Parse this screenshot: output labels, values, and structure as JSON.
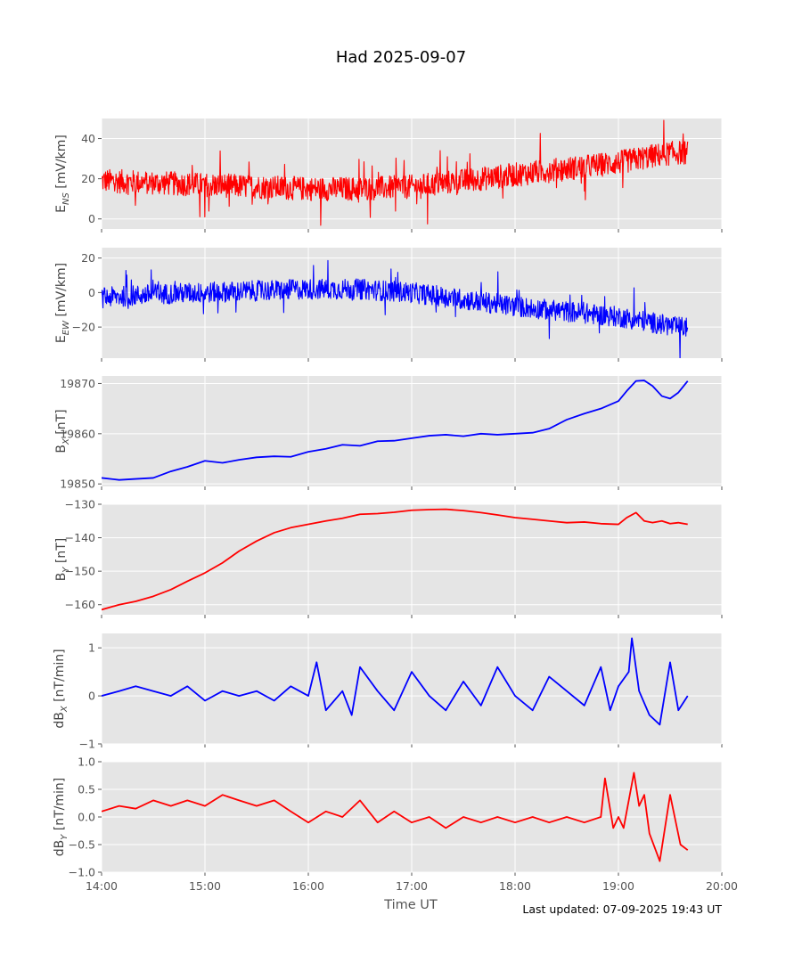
{
  "figure": {
    "title": "Had 2025-09-07",
    "xlabel": "Time UT",
    "footer": "Last updated: 07-09-2025 19:43 UT",
    "x_ticks": [
      "14:00",
      "15:00",
      "16:00",
      "17:00",
      "18:00",
      "19:00",
      "20:00"
    ]
  },
  "chart_data": [
    {
      "type": "line",
      "ylabel": "E",
      "ylabel_sub": "NS",
      "ylabel_unit": " [mV/km]",
      "color": "#ff0000",
      "ylim": [
        -5,
        50
      ],
      "yticks": [
        0,
        20,
        40
      ],
      "xlim_hours": [
        14,
        20
      ],
      "x": [
        14.0,
        14.5,
        15.0,
        15.5,
        16.0,
        16.5,
        17.0,
        17.5,
        18.0,
        18.5,
        19.0,
        19.3,
        19.55,
        19.67
      ],
      "y": [
        19,
        18,
        17,
        16,
        15,
        15,
        16,
        19,
        22,
        25,
        28,
        31,
        33,
        33
      ]
    },
    {
      "type": "line",
      "ylabel": "E",
      "ylabel_sub": "EW",
      "ylabel_unit": " [mV/km]",
      "color": "#0000ff",
      "ylim": [
        -38,
        26
      ],
      "yticks": [
        -20,
        0,
        20
      ],
      "xlim_hours": [
        14,
        20
      ],
      "x": [
        14.0,
        14.5,
        15.0,
        15.5,
        16.0,
        16.5,
        17.0,
        17.5,
        18.0,
        18.5,
        19.0,
        19.3,
        19.55,
        19.67
      ],
      "y": [
        -3,
        -1,
        0,
        1,
        2,
        2,
        0,
        -4,
        -8,
        -11,
        -14,
        -17,
        -20,
        -20
      ]
    },
    {
      "type": "line",
      "ylabel": "B",
      "ylabel_sub": "X",
      "ylabel_unit": " [nT]",
      "color": "#0000ff",
      "ylim": [
        19849.5,
        19871.5
      ],
      "yticks": [
        19850,
        19860,
        19870
      ],
      "xlim_hours": [
        14,
        20
      ],
      "x": [
        14.0,
        14.17,
        14.33,
        14.5,
        14.67,
        14.83,
        15.0,
        15.17,
        15.33,
        15.5,
        15.67,
        15.83,
        16.0,
        16.17,
        16.33,
        16.5,
        16.67,
        16.83,
        17.0,
        17.17,
        17.33,
        17.5,
        17.67,
        17.83,
        18.0,
        18.17,
        18.33,
        18.5,
        18.67,
        18.83,
        19.0,
        19.08,
        19.17,
        19.25,
        19.33,
        19.42,
        19.5,
        19.58,
        19.67
      ],
      "y": [
        19851.2,
        19850.8,
        19851.0,
        19851.2,
        19852.5,
        19853.4,
        19854.6,
        19854.2,
        19854.8,
        19855.3,
        19855.5,
        19855.4,
        19856.4,
        19857.0,
        19857.8,
        19857.6,
        19858.5,
        19858.6,
        19859.1,
        19859.6,
        19859.8,
        19859.5,
        19860.0,
        19859.8,
        19860.0,
        19860.2,
        19861.0,
        19862.8,
        19864.0,
        19865.0,
        19866.5,
        19868.5,
        19870.5,
        19870.6,
        19869.5,
        19867.5,
        19867.0,
        19868.2,
        19870.5
      ]
    },
    {
      "type": "line",
      "ylabel": "B",
      "ylabel_sub": "Y",
      "ylabel_unit": " [nT]",
      "color": "#ff0000",
      "ylim": [
        -163,
        -130
      ],
      "yticks": [
        -160,
        -150,
        -140,
        -130
      ],
      "xlim_hours": [
        14,
        20
      ],
      "x": [
        14.0,
        14.17,
        14.33,
        14.5,
        14.67,
        14.83,
        15.0,
        15.17,
        15.33,
        15.5,
        15.67,
        15.83,
        16.0,
        16.17,
        16.33,
        16.5,
        16.67,
        16.83,
        17.0,
        17.17,
        17.33,
        17.5,
        17.67,
        17.83,
        18.0,
        18.17,
        18.33,
        18.5,
        18.67,
        18.83,
        19.0,
        19.08,
        19.17,
        19.25,
        19.33,
        19.42,
        19.5,
        19.58,
        19.67
      ],
      "y": [
        -161.5,
        -160.0,
        -159.0,
        -157.5,
        -155.5,
        -153.0,
        -150.5,
        -147.5,
        -144.0,
        -141.0,
        -138.5,
        -137.0,
        -136.0,
        -135.0,
        -134.2,
        -133.0,
        -132.8,
        -132.4,
        -131.8,
        -131.6,
        -131.5,
        -131.9,
        -132.5,
        -133.2,
        -134.0,
        -134.5,
        -135.0,
        -135.5,
        -135.3,
        -135.8,
        -136.0,
        -134.0,
        -132.5,
        -135.0,
        -135.5,
        -135.0,
        -135.8,
        -135.5,
        -136.0
      ]
    },
    {
      "type": "line",
      "ylabel": "dB",
      "ylabel_sub": "X",
      "ylabel_unit": " [nT/min]",
      "color": "#0000ff",
      "ylim": [
        -1,
        1.3
      ],
      "yticks": [
        -1,
        0,
        1
      ],
      "xlim_hours": [
        14,
        20
      ],
      "x": [
        14.0,
        14.17,
        14.33,
        14.5,
        14.67,
        14.83,
        15.0,
        15.17,
        15.33,
        15.5,
        15.67,
        15.83,
        16.0,
        16.08,
        16.17,
        16.33,
        16.42,
        16.5,
        16.67,
        16.83,
        17.0,
        17.17,
        17.33,
        17.5,
        17.67,
        17.83,
        18.0,
        18.17,
        18.33,
        18.5,
        18.67,
        18.83,
        18.92,
        19.0,
        19.1,
        19.13,
        19.2,
        19.3,
        19.4,
        19.5,
        19.58,
        19.67
      ],
      "y": [
        0.0,
        0.1,
        0.2,
        0.1,
        0.0,
        0.2,
        -0.1,
        0.1,
        0.0,
        0.1,
        -0.1,
        0.2,
        0.0,
        0.7,
        -0.3,
        0.1,
        -0.4,
        0.6,
        0.1,
        -0.3,
        0.5,
        0.0,
        -0.3,
        0.3,
        -0.2,
        0.6,
        0.0,
        -0.3,
        0.4,
        0.1,
        -0.2,
        0.6,
        -0.3,
        0.2,
        0.5,
        1.2,
        0.1,
        -0.4,
        -0.6,
        0.7,
        -0.3,
        0.0
      ]
    },
    {
      "type": "line",
      "ylabel": "dB",
      "ylabel_sub": "Y",
      "ylabel_unit": " [nT/min]",
      "color": "#ff0000",
      "ylim": [
        -1,
        1
      ],
      "yticks": [
        -1.0,
        -0.5,
        0.0,
        0.5,
        1.0
      ],
      "xlim_hours": [
        14,
        20
      ],
      "x": [
        14.0,
        14.17,
        14.33,
        14.5,
        14.67,
        14.83,
        15.0,
        15.17,
        15.33,
        15.5,
        15.67,
        15.83,
        16.0,
        16.17,
        16.33,
        16.5,
        16.67,
        16.83,
        17.0,
        17.17,
        17.33,
        17.5,
        17.67,
        17.83,
        18.0,
        18.17,
        18.33,
        18.5,
        18.67,
        18.83,
        18.87,
        18.95,
        19.0,
        19.05,
        19.1,
        19.15,
        19.2,
        19.25,
        19.3,
        19.4,
        19.5,
        19.6,
        19.67
      ],
      "y": [
        0.1,
        0.2,
        0.15,
        0.3,
        0.2,
        0.3,
        0.2,
        0.4,
        0.3,
        0.2,
        0.3,
        0.1,
        -0.1,
        0.1,
        0.0,
        0.3,
        -0.1,
        0.1,
        -0.1,
        0.0,
        -0.2,
        0.0,
        -0.1,
        0.0,
        -0.1,
        0.0,
        -0.1,
        0.0,
        -0.1,
        0.0,
        0.7,
        -0.2,
        0.0,
        -0.2,
        0.3,
        0.8,
        0.2,
        0.4,
        -0.3,
        -0.8,
        0.4,
        -0.5,
        -0.6
      ]
    }
  ]
}
